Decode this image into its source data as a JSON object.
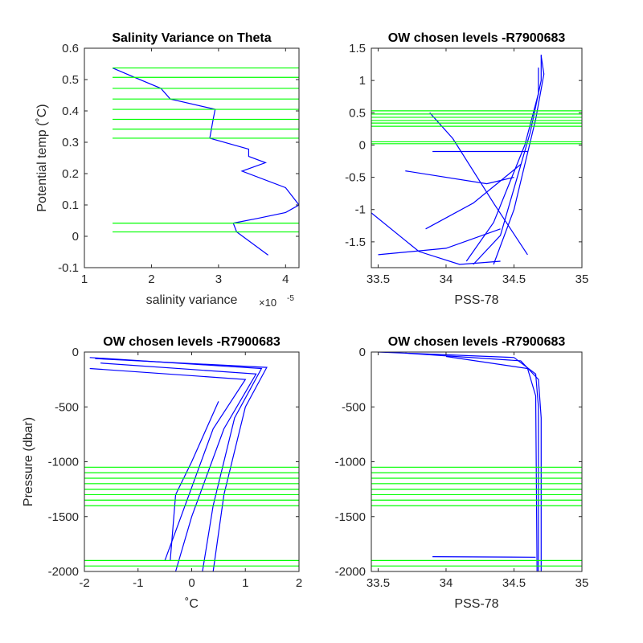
{
  "colors": {
    "profile": "#0000ff",
    "levels": "#00ff00",
    "axis": "#262626"
  },
  "chart_data": [
    {
      "id": "p1",
      "type": "line",
      "title": "Salinity Variance on Theta",
      "xlabel": "salinity variance",
      "xexponent_base": "×10",
      "xexponent_power": "-5",
      "ylabel": "Potential temp (˚C)",
      "xlim": [
        1,
        4.2
      ],
      "ylim": [
        -0.1,
        0.6
      ],
      "xticks": [
        1,
        2,
        3,
        4
      ],
      "xtick_labels": [
        "1",
        "2",
        "3",
        "4"
      ],
      "yticks": [
        -0.1,
        0,
        0.1,
        0.2,
        0.3,
        0.4,
        0.5,
        0.6
      ],
      "ytick_labels": [
        "-0.1",
        "0",
        "0.1",
        "0.2",
        "0.3",
        "0.4",
        "0.5",
        "0.6"
      ],
      "level_x": [
        1.42,
        4.2
      ],
      "levels": [
        0.537,
        0.507,
        0.472,
        0.438,
        0.405,
        0.373,
        0.342,
        0.313,
        0.042,
        0.014
      ],
      "series": [
        {
          "x": [
            1.42,
            1.75,
            2.14,
            2.28,
            2.95,
            2.92,
            2.87,
            3.45,
            3.45,
            3.7,
            3.35,
            4.0,
            4.2,
            4.0,
            3.6,
            3.22,
            3.27,
            3.74
          ],
          "y": [
            0.537,
            0.507,
            0.472,
            0.438,
            0.405,
            0.373,
            0.313,
            0.278,
            0.255,
            0.235,
            0.208,
            0.155,
            0.1,
            0.076,
            0.058,
            0.042,
            0.014,
            -0.06
          ]
        }
      ]
    },
    {
      "id": "p2",
      "type": "line",
      "title": "OW chosen levels -R7900683",
      "xlabel": "PSS-78",
      "ylabel": "",
      "xlim": [
        33.45,
        35
      ],
      "ylim": [
        -1.9,
        1.5
      ],
      "xticks": [
        33.5,
        34,
        34.5,
        35
      ],
      "xtick_labels": [
        "33.5",
        "34",
        "34.5",
        "35"
      ],
      "yticks": [
        -1.5,
        -1,
        -0.5,
        0,
        0.5,
        1,
        1.5
      ],
      "ytick_labels": [
        "-1.5",
        "-1",
        "-0.5",
        "0",
        "0.5",
        "1",
        "1.5"
      ],
      "level_x": [
        33.45,
        35
      ],
      "levels": [
        0.53,
        0.48,
        0.43,
        0.38,
        0.34,
        0.29,
        0.05,
        0.02
      ],
      "series": [
        {
          "x": [
            34.2,
            34.4,
            34.62,
            34.7,
            34.7
          ],
          "y": [
            -1.85,
            -1.4,
            0.2,
            1.0,
            1.4
          ]
        },
        {
          "x": [
            34.35,
            34.5,
            34.66,
            34.72,
            34.7
          ],
          "y": [
            -1.85,
            -1.0,
            0.4,
            1.1,
            1.38
          ]
        },
        {
          "x": [
            34.15,
            34.35,
            34.58,
            34.68,
            34.68
          ],
          "y": [
            -1.8,
            -1.2,
            0.0,
            0.8,
            1.2
          ]
        },
        {
          "x": [
            33.88,
            34.05,
            34.35,
            34.6
          ],
          "y": [
            0.5,
            0.1,
            -0.9,
            -1.7
          ]
        },
        {
          "x": [
            33.45,
            33.8,
            34.1,
            34.4
          ],
          "y": [
            -1.05,
            -1.65,
            -1.85,
            -1.8
          ]
        },
        {
          "x": [
            33.5,
            34.0,
            34.4
          ],
          "y": [
            -1.7,
            -1.6,
            -1.3
          ]
        },
        {
          "x": [
            33.85,
            34.2,
            34.55
          ],
          "y": [
            -1.3,
            -0.9,
            -0.3
          ]
        },
        {
          "x": [
            33.9,
            34.6
          ],
          "y": [
            -0.1,
            -0.1
          ]
        },
        {
          "x": [
            33.7,
            34.3,
            34.5
          ],
          "y": [
            -0.4,
            -0.6,
            -0.5
          ]
        }
      ]
    },
    {
      "id": "p3",
      "type": "line",
      "title": "OW chosen levels -R7900683",
      "xlabel": "˚C",
      "ylabel": "Pressure (dbar)",
      "xlim": [
        -2,
        2
      ],
      "ylim": [
        -2000,
        0
      ],
      "xticks": [
        -2,
        -1,
        0,
        1,
        2
      ],
      "xtick_labels": [
        "-2",
        "-1",
        "0",
        "1",
        "2"
      ],
      "yticks": [
        -2000,
        -1500,
        -1000,
        -500,
        0
      ],
      "ytick_labels": [
        "-2000",
        "-1500",
        "-1000",
        "-500",
        "0"
      ],
      "level_x": [
        -2,
        2
      ],
      "levels": [
        -1050,
        -1100,
        -1150,
        -1200,
        -1250,
        -1300,
        -1350,
        -1400,
        -1900,
        -1950
      ],
      "series": [
        {
          "x": [
            -1.9,
            1.3,
            0.8,
            0.4,
            0.2
          ],
          "y": [
            -50,
            -150,
            -600,
            -1400,
            -2000
          ]
        },
        {
          "x": [
            -1.8,
            1.4,
            1.0,
            0.6,
            0.4
          ],
          "y": [
            -60,
            -140,
            -500,
            -1300,
            -2000
          ]
        },
        {
          "x": [
            -1.7,
            1.2,
            0.6,
            0.0,
            -0.3
          ],
          "y": [
            -100,
            -200,
            -700,
            -1500,
            -2000
          ]
        },
        {
          "x": [
            -1.9,
            1.0,
            0.4,
            -0.2,
            -0.5
          ],
          "y": [
            -150,
            -250,
            -700,
            -1500,
            -1900
          ]
        },
        {
          "x": [
            0.5,
            0.0,
            -0.3,
            -0.4
          ],
          "y": [
            -450,
            -1000,
            -1300,
            -1900
          ]
        }
      ]
    },
    {
      "id": "p4",
      "type": "line",
      "title": "OW chosen levels -R7900683",
      "xlabel": "PSS-78",
      "ylabel": "",
      "xlim": [
        33.45,
        35
      ],
      "ylim": [
        -2000,
        0
      ],
      "xticks": [
        33.5,
        34,
        34.5,
        35
      ],
      "xtick_labels": [
        "33.5",
        "34",
        "34.5",
        "35"
      ],
      "yticks": [
        -2000,
        -1500,
        -1000,
        -500,
        0
      ],
      "ytick_labels": [
        "-2000",
        "-1500",
        "-1000",
        "-500",
        "0"
      ],
      "level_x": [
        33.45,
        35
      ],
      "levels": [
        -1050,
        -1100,
        -1150,
        -1200,
        -1250,
        -1300,
        -1350,
        -1400,
        -1900,
        -1950
      ],
      "series": [
        {
          "x": [
            33.5,
            34.5,
            34.66,
            34.68,
            34.68
          ],
          "y": [
            0,
            -50,
            -200,
            -500,
            -2000
          ]
        },
        {
          "x": [
            33.7,
            34.55,
            34.68,
            34.7,
            34.7
          ],
          "y": [
            -10,
            -80,
            -250,
            -600,
            -2000
          ]
        },
        {
          "x": [
            34.0,
            34.6,
            34.66,
            34.67
          ],
          "y": [
            -40,
            -150,
            -400,
            -2000
          ]
        },
        {
          "x": [
            33.9,
            34.66
          ],
          "y": [
            -1865,
            -1870
          ]
        }
      ]
    }
  ]
}
